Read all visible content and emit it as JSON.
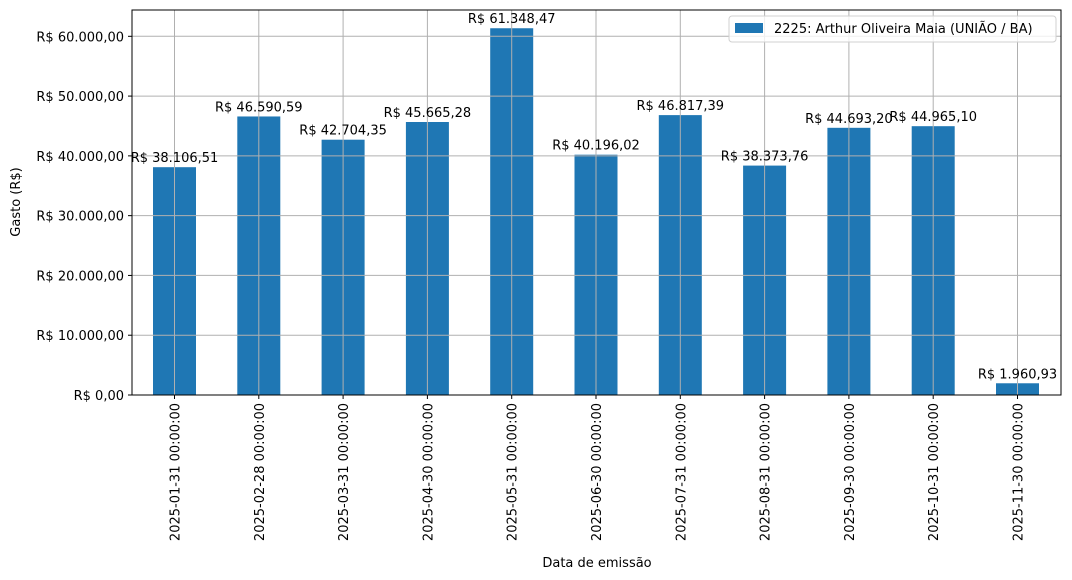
{
  "chart_data": {
    "type": "bar",
    "title": "",
    "xlabel": "Data de emissão",
    "ylabel": "Gasto (R$)",
    "categories": [
      "2025-01-31 00:00:00",
      "2025-02-28 00:00:00",
      "2025-03-31 00:00:00",
      "2025-04-30 00:00:00",
      "2025-05-31 00:00:00",
      "2025-06-30 00:00:00",
      "2025-07-31 00:00:00",
      "2025-08-31 00:00:00",
      "2025-09-30 00:00:00",
      "2025-10-31 00:00:00",
      "2025-11-30 00:00:00"
    ],
    "series": [
      {
        "name": "2225: Arthur Oliveira Maia (UNIÃO / BA)",
        "color": "#1f77b4",
        "values": [
          38106.51,
          46590.59,
          42704.35,
          45665.28,
          61348.47,
          40196.02,
          46817.39,
          38373.76,
          44693.2,
          44965.1,
          1960.93
        ],
        "labels": [
          "R$ 38.106,51",
          "R$ 46.590,59",
          "R$ 42.704,35",
          "R$ 45.665,28",
          "R$ 61.348,47",
          "R$ 40.196,02",
          "R$ 46.817,39",
          "R$ 38.373,76",
          "R$ 44.693,20",
          "R$ 44.965,10",
          "R$ 1.960,93"
        ]
      }
    ],
    "ylim": [
      0,
      64400
    ],
    "yticks": [
      0,
      10000,
      20000,
      30000,
      40000,
      50000,
      60000
    ],
    "ytick_labels": [
      "R$ 0,00",
      "R$ 10.000,00",
      "R$ 20.000,00",
      "R$ 30.000,00",
      "R$ 40.000,00",
      "R$ 50.000,00",
      "R$ 60.000,00"
    ],
    "grid": true,
    "legend_position": "upper right",
    "xtick_rotation": 90
  },
  "colors": {
    "bar": "#1f77b4",
    "grid": "#b0b0b0",
    "axis": "#000000"
  }
}
